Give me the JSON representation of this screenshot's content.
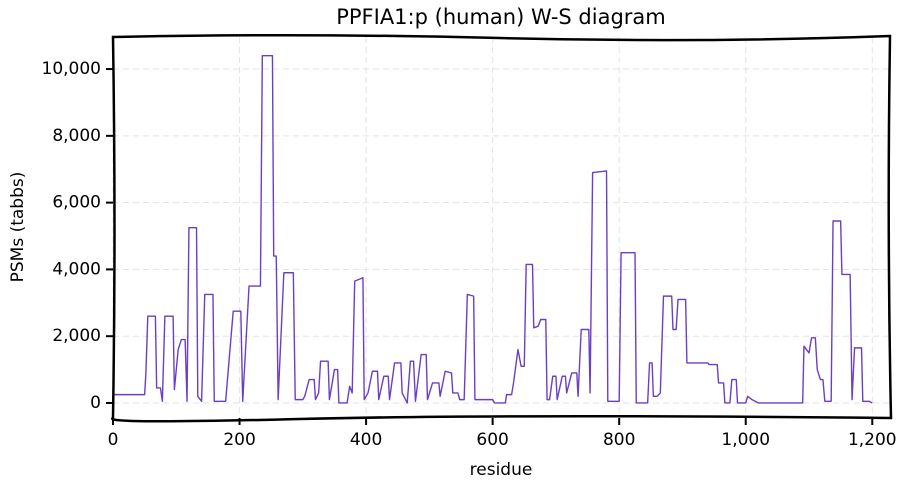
{
  "chart_data": {
    "type": "line",
    "title": "PPFIA1:p (human) W-S diagram",
    "x_label": "residue",
    "y_label": "PSMs (tabbs)",
    "x": [
      0,
      50,
      52,
      55,
      67,
      69,
      75,
      78,
      82,
      95,
      97,
      103,
      108,
      114,
      117,
      120,
      132,
      134,
      140,
      145,
      158,
      160,
      175,
      178,
      190,
      202,
      205,
      215,
      233,
      236,
      252,
      254,
      258,
      261,
      270,
      285,
      288,
      300,
      303,
      310,
      318,
      320,
      325,
      328,
      340,
      342,
      350,
      355,
      357,
      370,
      374,
      378,
      382,
      395,
      397,
      403,
      410,
      418,
      420,
      428,
      435,
      437,
      445,
      455,
      457,
      465,
      470,
      475,
      478,
      487,
      495,
      497,
      505,
      515,
      517,
      525,
      535,
      537,
      545,
      548,
      555,
      560,
      570,
      572,
      600,
      603,
      620,
      622,
      630,
      633,
      640,
      645,
      650,
      653,
      663,
      665,
      672,
      676,
      684,
      686,
      690,
      695,
      700,
      702,
      710,
      715,
      717,
      725,
      733,
      735,
      740,
      752,
      754,
      758,
      780,
      782,
      800,
      803,
      825,
      827,
      845,
      848,
      852,
      854,
      860,
      865,
      870,
      883,
      885,
      890,
      893,
      905,
      907,
      940,
      942,
      955,
      957,
      965,
      967,
      975,
      978,
      985,
      987,
      1000,
      1003,
      1010,
      1020,
      1030,
      1050,
      1090,
      1092,
      1100,
      1104,
      1110,
      1113,
      1118,
      1122,
      1125,
      1135,
      1138,
      1150,
      1152,
      1165,
      1168,
      1172,
      1183,
      1185,
      1195,
      1200
    ],
    "series": [
      {
        "name": "PSMs",
        "color": "#6a3fc6",
        "values": [
          250,
          250,
          900,
          2600,
          2600,
          450,
          450,
          50,
          2600,
          2600,
          400,
          1600,
          1900,
          1900,
          50,
          5250,
          5250,
          200,
          50,
          3250,
          3250,
          50,
          50,
          50,
          2750,
          2750,
          50,
          3500,
          3500,
          10400,
          10400,
          4400,
          4400,
          100,
          3900,
          3900,
          100,
          100,
          200,
          700,
          700,
          100,
          300,
          1250,
          1250,
          100,
          1000,
          1000,
          0,
          0,
          500,
          300,
          3650,
          3750,
          100,
          300,
          950,
          950,
          100,
          800,
          800,
          100,
          1200,
          1200,
          300,
          0,
          1250,
          1250,
          50,
          1450,
          1450,
          100,
          600,
          600,
          200,
          950,
          900,
          300,
          300,
          100,
          100,
          3250,
          3200,
          100,
          100,
          0,
          0,
          250,
          250,
          600,
          1600,
          1100,
          1100,
          4150,
          4150,
          2250,
          2300,
          2500,
          2500,
          100,
          100,
          800,
          800,
          100,
          800,
          800,
          300,
          900,
          900,
          200,
          2200,
          2200,
          300,
          6900,
          6950,
          50,
          50,
          4500,
          4500,
          0,
          0,
          1200,
          1200,
          200,
          200,
          300,
          3200,
          3200,
          2200,
          2200,
          3100,
          3100,
          1200,
          1200,
          1150,
          1150,
          600,
          600,
          0,
          0,
          700,
          700,
          0,
          0,
          200,
          100,
          0,
          0,
          0,
          0,
          1700,
          1500,
          1950,
          1950,
          1000,
          700,
          700,
          50,
          50,
          5450,
          5450,
          3850,
          3850,
          100,
          1650,
          1650,
          50,
          50,
          0
        ]
      }
    ],
    "xlim": [
      0,
      1228
    ],
    "ylim": [
      -450,
      10960
    ],
    "xticks": [
      0,
      200,
      400,
      600,
      800,
      {
        "value": 1000,
        "label": "1,000"
      },
      {
        "value": 1200,
        "label": "1,200"
      }
    ],
    "yticks": [
      0,
      {
        "value": 2000,
        "label": "2,000"
      },
      {
        "value": 4000,
        "label": "4,000"
      },
      {
        "value": 6000,
        "label": "6,000"
      },
      {
        "value": 8000,
        "label": "8,000"
      },
      {
        "value": 10000,
        "label": "10,000"
      }
    ],
    "grid": true
  }
}
